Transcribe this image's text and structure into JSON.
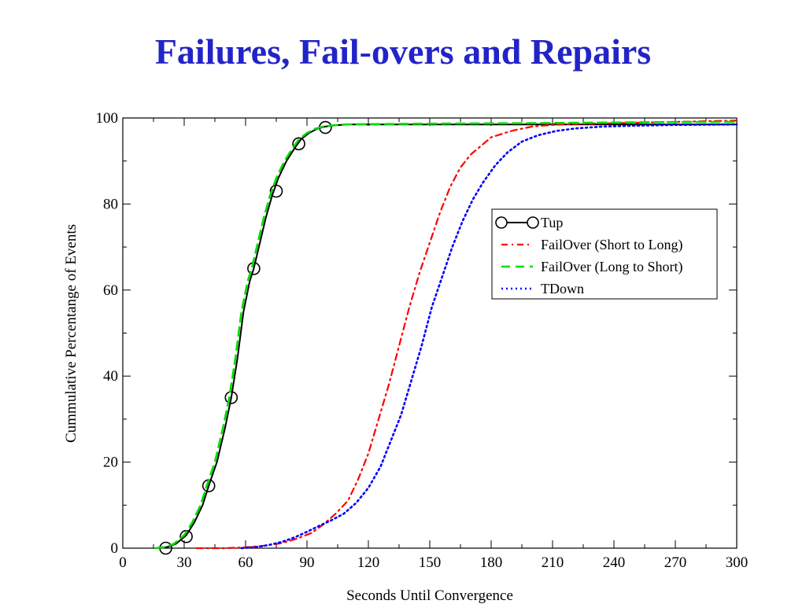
{
  "slide": {
    "title": "Failures, Fail-overs and Repairs",
    "title_color": "#2323c8"
  },
  "chart_data": {
    "type": "line",
    "title": "",
    "xlabel": "Seconds Until Convergence",
    "ylabel": "Cummulative Percentange of Events",
    "xlim": [
      0,
      300
    ],
    "ylim": [
      0,
      100
    ],
    "xticks": [
      0,
      30,
      60,
      90,
      120,
      150,
      180,
      210,
      240,
      270,
      300
    ],
    "yticks": [
      0,
      20,
      40,
      60,
      80,
      100
    ],
    "grid": false,
    "legend_position": "right",
    "series": [
      {
        "name": "Tup",
        "color": "#000000",
        "style": "solid-circle-markers",
        "x": [
          18,
          22,
          26,
          31,
          35,
          39,
          42,
          46,
          50,
          53,
          56,
          59,
          62,
          64,
          67,
          70,
          73,
          76,
          80,
          84,
          87,
          91,
          95,
          99,
          104,
          110,
          130,
          160,
          200,
          250,
          300
        ],
        "y": [
          0,
          0.3,
          1,
          3,
          6,
          10,
          14.5,
          20,
          28,
          35,
          44,
          55,
          62,
          65,
          71,
          77,
          82,
          86,
          90,
          93,
          95,
          96.5,
          97.5,
          98,
          98.3,
          98.5,
          98.5,
          98.5,
          98.5,
          98.5,
          98.5
        ],
        "marker_points": [
          [
            21,
            0
          ],
          [
            31,
            2.7
          ],
          [
            42,
            14.5
          ],
          [
            53,
            35
          ],
          [
            64,
            65
          ],
          [
            75,
            83
          ],
          [
            86,
            94
          ],
          [
            99,
            97.8
          ]
        ]
      },
      {
        "name": "FailOver (Short to Long)",
        "color": "#ff0000",
        "style": "dash-dot",
        "x": [
          36,
          50,
          60,
          70,
          78,
          85,
          92,
          98,
          104,
          110,
          115,
          120,
          125,
          130,
          135,
          140,
          145,
          150,
          155,
          160,
          165,
          170,
          175,
          180,
          190,
          200,
          210,
          220,
          240,
          260,
          280,
          300
        ],
        "y": [
          0,
          0,
          0.2,
          0.6,
          1.2,
          2.2,
          3.5,
          5.5,
          8,
          11,
          16,
          22,
          30,
          38,
          47,
          56,
          64,
          71,
          78,
          84,
          88.5,
          91.5,
          93.5,
          95.5,
          97,
          98,
          98.4,
          98.6,
          98.8,
          99,
          99.2,
          99.4
        ]
      },
      {
        "name": "FailOver (Long to Short)",
        "color": "#00dd00",
        "style": "dashed",
        "x": [
          16,
          21,
          25,
          30,
          34,
          38,
          41,
          45,
          49,
          52,
          55,
          58,
          61,
          63,
          66,
          69,
          72,
          75,
          79,
          83,
          86,
          90,
          94,
          98,
          103,
          110,
          130,
          160,
          200,
          250,
          300
        ],
        "y": [
          0,
          0.3,
          1,
          3,
          6,
          10,
          14.5,
          20,
          28,
          35,
          44,
          55,
          62,
          65,
          71,
          77,
          82,
          86,
          90,
          93,
          95,
          96.5,
          97.5,
          98,
          98.3,
          98.5,
          98.6,
          98.7,
          98.8,
          99,
          99.1
        ]
      },
      {
        "name": "TDown",
        "color": "#0000ff",
        "style": "dotted",
        "x": [
          58,
          66,
          72,
          78,
          84,
          90,
          96,
          102,
          108,
          114,
          120,
          126,
          131,
          136,
          141,
          146,
          151,
          156,
          161,
          166,
          171,
          176,
          182,
          188,
          195,
          203,
          212,
          222,
          235,
          250,
          270,
          300
        ],
        "y": [
          0,
          0.3,
          0.8,
          1.5,
          2.5,
          3.8,
          5.2,
          6.5,
          8,
          10.5,
          14,
          19,
          25,
          31,
          39,
          47,
          56,
          63,
          70,
          76,
          81,
          85,
          89,
          92,
          94.5,
          96,
          97,
          97.6,
          98,
          98.2,
          98.4,
          98.5
        ]
      }
    ]
  }
}
